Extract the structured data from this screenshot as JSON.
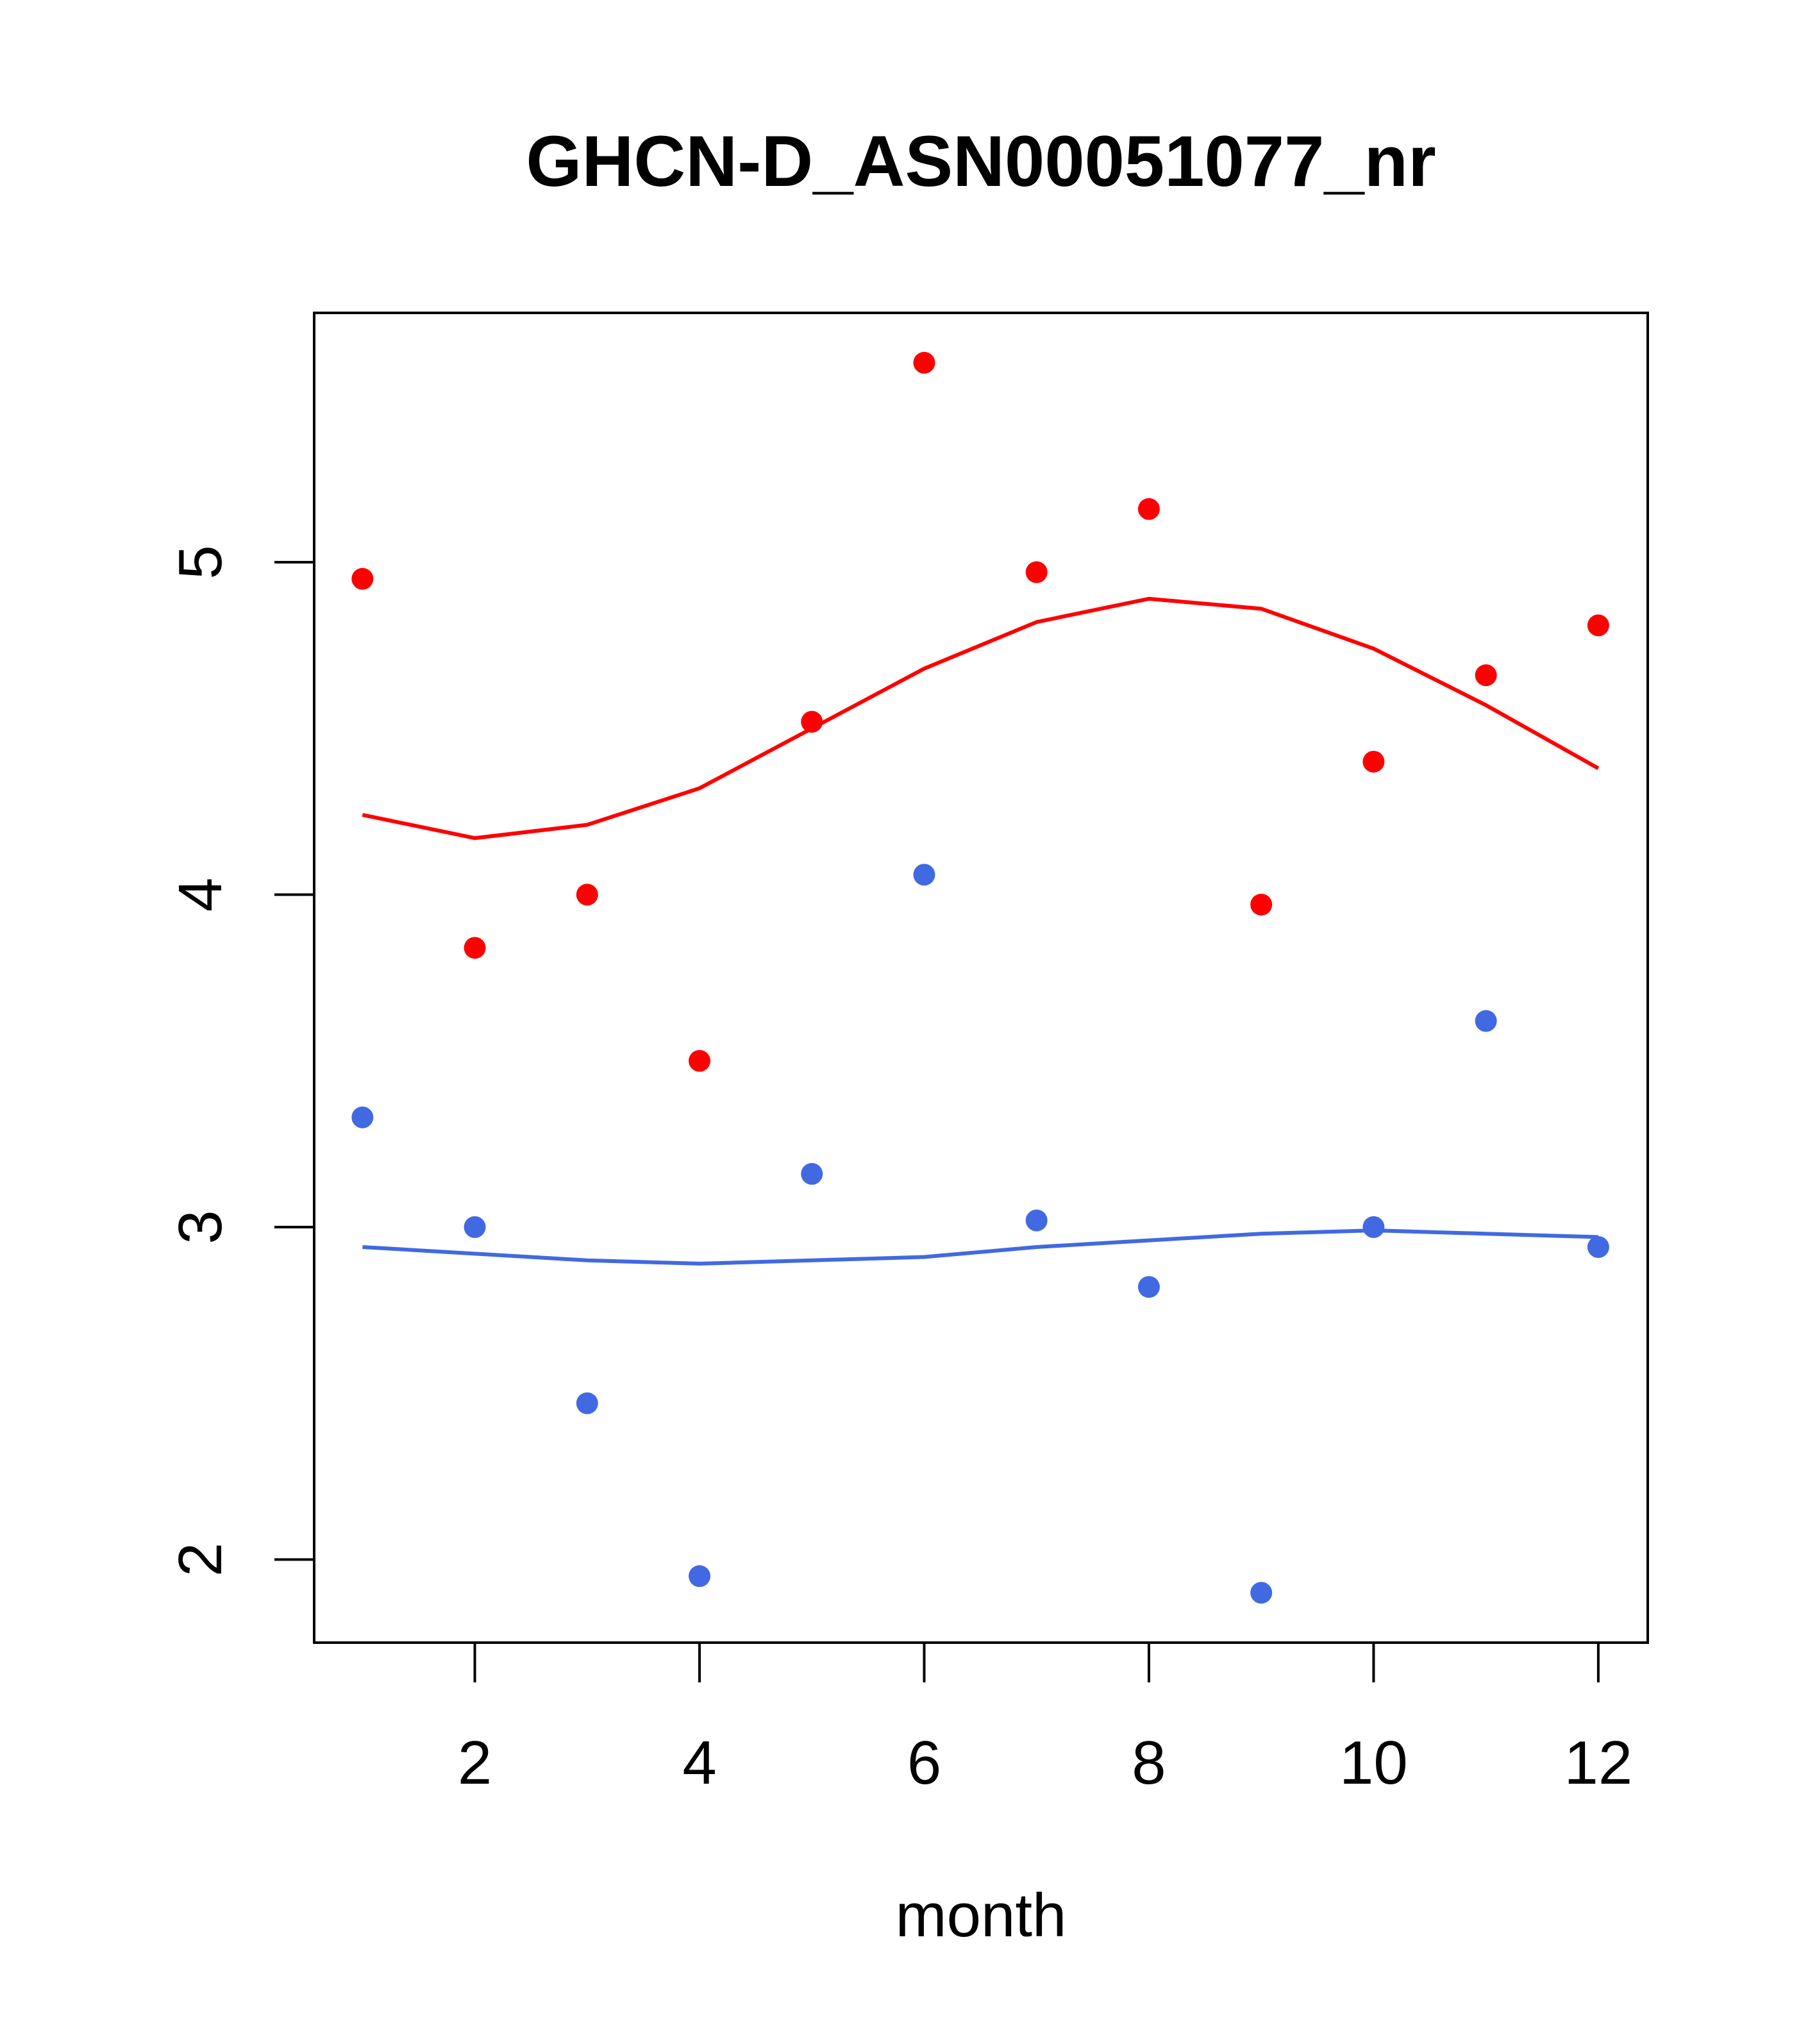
{
  "chart_data": {
    "type": "scatter",
    "title": "GHCN-D_ASN00051077_nr",
    "xlabel": "month",
    "ylabel": "",
    "xlim": [
      0.57,
      12.44
    ],
    "ylim": [
      1.75,
      5.75
    ],
    "xticks": [
      2,
      4,
      6,
      8,
      10,
      12
    ],
    "yticks": [
      2,
      3,
      4,
      5
    ],
    "grid": false,
    "x": [
      1,
      2,
      3,
      4,
      5,
      6,
      7,
      8,
      9,
      10,
      11,
      12
    ],
    "series": [
      {
        "name": "red points",
        "kind": "points",
        "color": "#FF0000",
        "values": [
          4.95,
          3.84,
          4.0,
          3.5,
          4.52,
          5.6,
          4.97,
          5.16,
          3.97,
          4.4,
          4.66,
          4.81
        ]
      },
      {
        "name": "red smooth",
        "kind": "line",
        "color": "#FF0000",
        "values": [
          4.24,
          4.17,
          4.21,
          4.32,
          4.5,
          4.68,
          4.82,
          4.89,
          4.86,
          4.74,
          4.57,
          4.38
        ]
      },
      {
        "name": "blue points",
        "kind": "points",
        "color": "#4169E1",
        "values": [
          3.33,
          3.0,
          2.47,
          1.95,
          3.16,
          4.06,
          3.02,
          2.82,
          1.9,
          3.0,
          3.62,
          2.94
        ]
      },
      {
        "name": "blue smooth",
        "kind": "line",
        "color": "#4169E1",
        "values": [
          2.94,
          2.92,
          2.9,
          2.89,
          2.9,
          2.91,
          2.94,
          2.96,
          2.98,
          2.99,
          2.98,
          2.97
        ]
      }
    ]
  }
}
